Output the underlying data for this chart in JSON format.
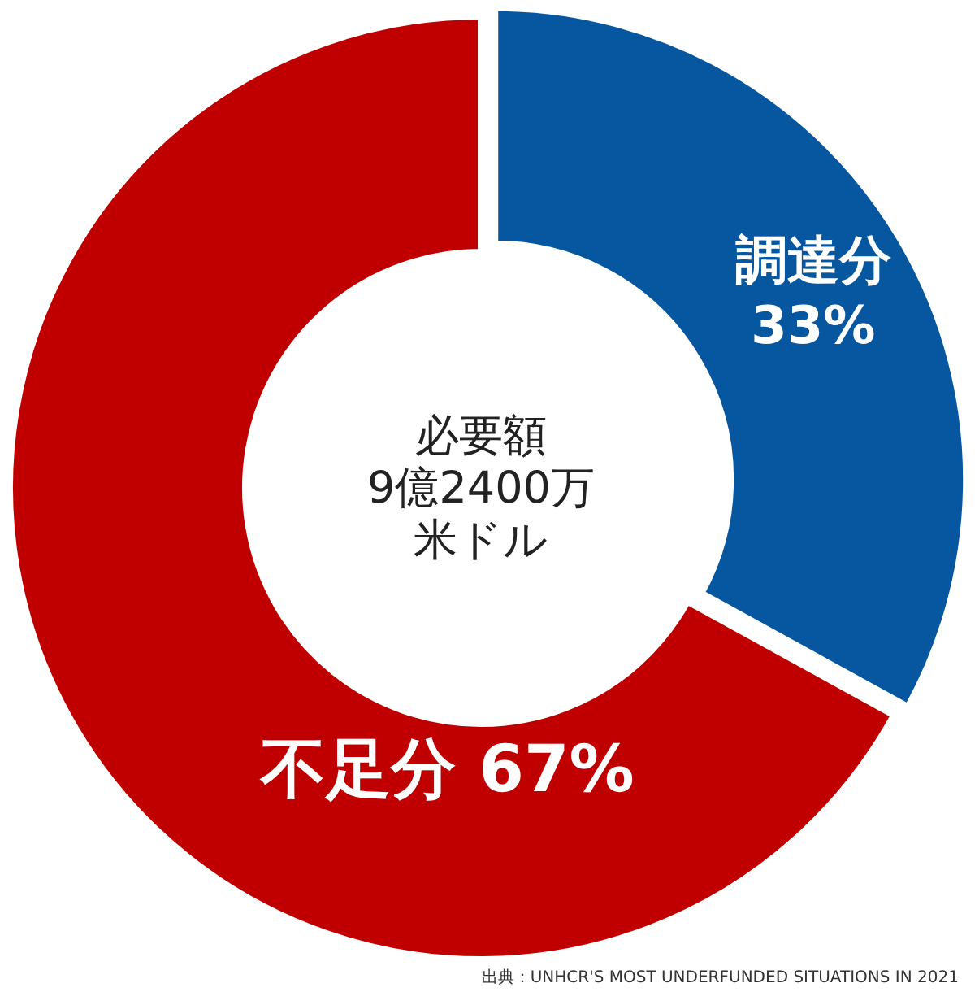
{
  "chart_data": {
    "type": "donut",
    "title": "必要額",
    "subtitle": "9億2400万米ドル",
    "categories": [
      "調達分",
      "不足分"
    ],
    "values": [
      33,
      67
    ],
    "value_labels": [
      "33%",
      "67%"
    ],
    "colors": [
      "#0757a0",
      "#c00000"
    ],
    "annotations": [
      "出典：UNHCR'S MOST UNDERFUNDED SITUATIONS IN 2021"
    ]
  }
}
